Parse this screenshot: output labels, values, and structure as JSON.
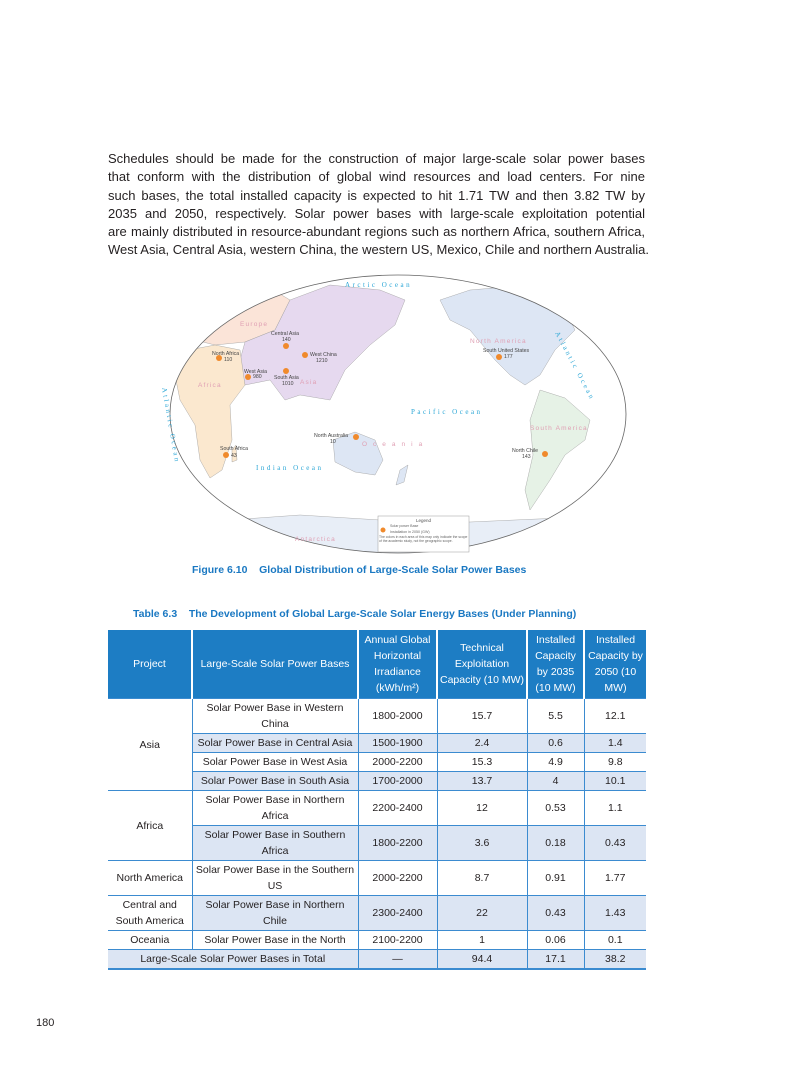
{
  "paragraph_lines": [
    "Schedules should be made for the construction of major large-scale solar power bases",
    "that conform with the distribution of global wind resources and load centers. For nine",
    "such bases, the total installed capacity is expected to hit 1.71 TW and then 3.82 TW by",
    "2035 and 2050, respectively. Solar power bases with large-scale exploitation potential",
    "are mainly distributed in resource-abundant regions such as northern Africa, southern Africa,",
    "West Asia, Central Asia, western China, the western US, Mexico, Chile and northern Australia."
  ],
  "map": {
    "oceans": {
      "arctic": "Arctic Ocean",
      "atlantic": "Atlantic Ocean",
      "pacific": "Pacific Ocean",
      "indian": "Indian Ocean"
    },
    "regions": {
      "europe": "Europe",
      "africa": "Africa",
      "asia": "Asia",
      "north_america": "North America",
      "south_america": "South America",
      "oceania": "Oceania",
      "antarctica": "Antarctica"
    },
    "bases": [
      {
        "name": "Central Asia",
        "value": "140"
      },
      {
        "name": "West China",
        "value": "1210"
      },
      {
        "name": "North Africa",
        "value": "110"
      },
      {
        "name": "West Asia",
        "value": "980"
      },
      {
        "name": "South Asia",
        "value": "1010"
      },
      {
        "name": "South United States",
        "value": "177"
      },
      {
        "name": "North Australia",
        "value": "10"
      },
      {
        "name": "South Africa",
        "value": "43"
      },
      {
        "name": "North Chile",
        "value": "143"
      }
    ],
    "legend": {
      "title": "Legend",
      "item1": "Solar power Base",
      "item2": "Installation in 2050 (GW)",
      "note": "The colors in each area of this map only indicate the scope of the academic study, not the geographic scope."
    },
    "colors": {
      "marker": "#f08a2c",
      "ocean_text": "#2aa6d6",
      "asia": "#e6d9ef",
      "africa": "#fbe8cf",
      "americas": "#dde6f4",
      "oceania": "#dde6f4",
      "south_america": "#e6f2e6"
    }
  },
  "figure_caption": "Figure 6.10    Global Distribution of Large-Scale Solar Power Bases",
  "table": {
    "caption": "Table 6.3    The Development of Global Large-Scale Solar Energy Bases (Under Planning)",
    "headers": [
      "Project",
      "Large-Scale Solar Power Bases",
      "Annual Global Horizontal Irradiance (kWh/m²)",
      "Technical Exploitation Capacity (10 MW)",
      "Installed Capacity by 2035 (10 MW)",
      "Installed Capacity by 2050 (10 MW)"
    ],
    "rows": [
      {
        "project": "Asia",
        "base": "Solar Power Base in Western China",
        "ghi": "1800-2000",
        "tech": "15.7",
        "c2035": "5.5",
        "c2050": "12.1"
      },
      {
        "base": "Solar Power Base in Central Asia",
        "ghi": "1500-1900",
        "tech": "2.4",
        "c2035": "0.6",
        "c2050": "1.4"
      },
      {
        "base": "Solar Power Base in West Asia",
        "ghi": "2000-2200",
        "tech": "15.3",
        "c2035": "4.9",
        "c2050": "9.8"
      },
      {
        "base": "Solar Power Base in South Asia",
        "ghi": "1700-2000",
        "tech": "13.7",
        "c2035": "4",
        "c2050": "10.1"
      },
      {
        "project": "Africa",
        "base": "Solar Power Base in Northern Africa",
        "ghi": "2200-2400",
        "tech": "12",
        "c2035": "0.53",
        "c2050": "1.1"
      },
      {
        "base": "Solar Power Base in Southern Africa",
        "ghi": "1800-2200",
        "tech": "3.6",
        "c2035": "0.18",
        "c2050": "0.43"
      },
      {
        "project": "North America",
        "base": "Solar Power Base in the Southern US",
        "ghi": "2000-2200",
        "tech": "8.7",
        "c2035": "0.91",
        "c2050": "1.77"
      },
      {
        "project": "Central and South America",
        "base": "Solar Power Base in Northern Chile",
        "ghi": "2300-2400",
        "tech": "22",
        "c2035": "0.43",
        "c2050": "1.43"
      },
      {
        "project": "Oceania",
        "base": "Solar Power Base in the North",
        "ghi": "2100-2200",
        "tech": "1",
        "c2035": "0.06",
        "c2050": "0.1"
      }
    ],
    "total": {
      "label": "Large-Scale Solar Power Bases in Total",
      "ghi": "—",
      "tech": "94.4",
      "c2035": "17.1",
      "c2050": "38.2"
    }
  },
  "page_number": "180"
}
